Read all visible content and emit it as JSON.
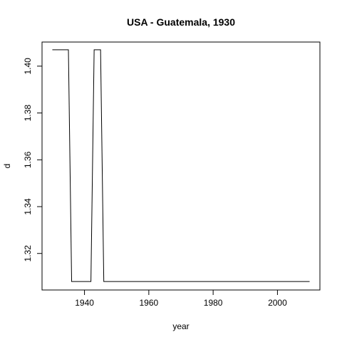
{
  "chart_data": {
    "type": "line",
    "title": "USA - Guatemala, 1930",
    "xlabel": "year",
    "ylabel": "d",
    "xlim": [
      1926.8,
      2013.2
    ],
    "ylim": [
      1.3044,
      1.4103
    ],
    "x_ticks": [
      1940,
      1960,
      1980,
      2000
    ],
    "y_ticks": [
      1.32,
      1.34,
      1.36,
      1.38,
      1.4
    ],
    "x_tick_labels": [
      "1940",
      "1960",
      "1980",
      "2000"
    ],
    "y_tick_labels": [
      "1.32",
      "1.34",
      "1.36",
      "1.38",
      "1.40"
    ],
    "grid": false,
    "series": [
      {
        "color": "#000000",
        "x": [
          1930,
          1935,
          1936,
          1942,
          1943,
          1945,
          1946,
          2010
        ],
        "y": [
          1.407,
          1.407,
          1.308,
          1.308,
          1.407,
          1.407,
          1.308,
          1.308
        ]
      }
    ]
  }
}
